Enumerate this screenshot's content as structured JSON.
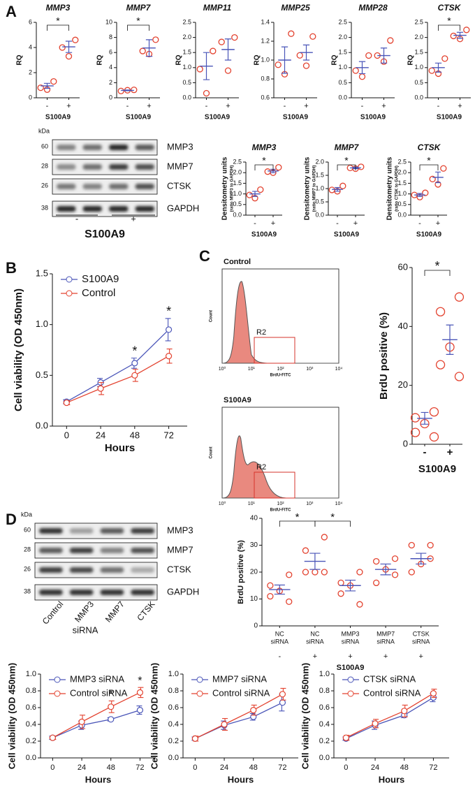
{
  "panels": [
    "A",
    "B",
    "C",
    "D"
  ],
  "blots": [
    {
      "unit": "kDa",
      "proteins": [
        "MMP3",
        "MMP7",
        "CTSK",
        "GAPDH"
      ],
      "kda": [
        "60",
        "28",
        "26",
        "38"
      ],
      "lanes": [
        "-",
        "+"
      ],
      "group_label": "S100A9"
    },
    {
      "unit": "kDa",
      "proteins": [
        "MMP3",
        "MMP7",
        "CTSK",
        "GAPDH"
      ],
      "kda": [
        "60",
        "28",
        "26",
        "38"
      ],
      "lanes": [
        "Control",
        "MMP3",
        "MMP7",
        "CTSK"
      ],
      "group_label": "siRNA"
    }
  ],
  "flow": [
    {
      "title": "Control",
      "gate": "R2",
      "ylabel": "Count",
      "xlabel": "BrdU-FITC",
      "xticks": [
        "10⁰",
        "10¹",
        "10²",
        "10³",
        "10⁴"
      ]
    },
    {
      "title": "S100A9",
      "gate": "R2",
      "ylabel": "Count",
      "xlabel": "BrdU-FITC",
      "xticks": [
        "10⁰",
        "10¹",
        "10²",
        "10³",
        "10⁴"
      ]
    }
  ],
  "chart_data": [
    {
      "type": "dot",
      "title": "MMP3",
      "ylabel": "RQ",
      "xlabel": "S100A9",
      "categories": [
        "-",
        "+"
      ],
      "points": [
        [
          1.3,
          0.8,
          0.65
        ],
        [
          4.6,
          4.0,
          3.3
        ]
      ],
      "mean": [
        0.95,
        4.05
      ],
      "sem": [
        0.2,
        0.45
      ],
      "ylim": [
        0,
        6
      ],
      "yticks": [
        0,
        2,
        4,
        6
      ],
      "brackets": [
        {
          "label": "*",
          "between": [
            0,
            1
          ]
        }
      ],
      "point_color": "#e3422f",
      "mean_color": "#4a55b8"
    },
    {
      "type": "dot",
      "title": "MMP7",
      "ylabel": "RQ",
      "xlabel": "S100A9",
      "categories": [
        "-",
        "+"
      ],
      "points": [
        [
          1.05,
          0.9,
          1.0
        ],
        [
          7.7,
          6.2,
          5.8
        ]
      ],
      "mean": [
        0.98,
        6.6
      ],
      "sem": [
        0.05,
        1.1
      ],
      "ylim": [
        0,
        10
      ],
      "yticks": [
        0,
        2,
        4,
        6,
        8,
        10
      ],
      "brackets": [
        {
          "label": "*",
          "between": [
            0,
            1
          ]
        }
      ],
      "point_color": "#e3422f",
      "mean_color": "#4a55b8"
    },
    {
      "type": "dot",
      "title": "MMP11",
      "ylabel": "RQ",
      "xlabel": "S100A9",
      "categories": [
        "-",
        "+"
      ],
      "points": [
        [
          1.55,
          0.95,
          0.15
        ],
        [
          2.0,
          1.85,
          0.9
        ]
      ],
      "mean": [
        1.05,
        1.6
      ],
      "sem": [
        0.45,
        0.35
      ],
      "ylim": [
        0,
        2.5
      ],
      "yticks": [
        {
          "value": 0,
          "label": "0.0"
        },
        0.5,
        {
          "value": 1,
          "label": "1.0"
        },
        1.5,
        {
          "value": 2,
          "label": "2.0"
        },
        2.5
      ],
      "brackets": [],
      "point_color": "#e3422f",
      "mean_color": "#4a55b8"
    },
    {
      "type": "dot",
      "title": "MMP25",
      "ylabel": "RQ",
      "xlabel": "S100A9",
      "categories": [
        "-",
        "+"
      ],
      "points": [
        [
          1.28,
          0.95,
          0.85
        ],
        [
          1.25,
          1.05,
          0.94
        ]
      ],
      "mean": [
        1.0,
        1.08
      ],
      "sem": [
        0.14,
        0.08
      ],
      "ylim": [
        0.6,
        1.4
      ],
      "yticks": [
        0.6,
        0.8,
        {
          "value": 1,
          "label": "1.0"
        },
        1.2,
        1.4
      ],
      "brackets": [],
      "point_color": "#e3422f",
      "mean_color": "#4a55b8"
    },
    {
      "type": "dot",
      "title": "MMP28",
      "ylabel": "RQ",
      "xlabel": "S100A9",
      "categories": [
        "-",
        "+"
      ],
      "points": [
        [
          1.4,
          0.9,
          0.7
        ],
        [
          1.9,
          1.4,
          1.2
        ]
      ],
      "mean": [
        1.0,
        1.4
      ],
      "sem": [
        0.2,
        0.25
      ],
      "ylim": [
        0,
        2.5
      ],
      "yticks": [
        {
          "value": 0,
          "label": "0.0"
        },
        0.5,
        {
          "value": 1,
          "label": "1.0"
        },
        1.5,
        {
          "value": 2,
          "label": "2.0"
        },
        2.5
      ],
      "brackets": [],
      "point_color": "#e3422f",
      "mean_color": "#4a55b8"
    },
    {
      "type": "dot",
      "title": "CTSK",
      "ylabel": "RQ",
      "xlabel": "S100A9",
      "categories": [
        "-",
        "+"
      ],
      "points": [
        [
          1.3,
          0.9,
          0.8
        ],
        [
          2.25,
          2.05,
          1.95
        ]
      ],
      "mean": [
        1.0,
        2.07
      ],
      "sem": [
        0.15,
        0.1
      ],
      "ylim": [
        0,
        2.5
      ],
      "yticks": [
        {
          "value": 0,
          "label": "0.0"
        },
        0.5,
        {
          "value": 1,
          "label": "1.0"
        },
        1.5,
        {
          "value": 2,
          "label": "2.0"
        },
        2.5
      ],
      "brackets": [
        {
          "label": "*",
          "between": [
            0,
            1
          ]
        }
      ],
      "point_color": "#e3422f",
      "mean_color": "#4a55b8"
    },
    {
      "type": "dot",
      "title": "MMP3",
      "ylabel": "Densitometry units",
      "ylabel_note": "(ratio MMP3 to GAPDH)",
      "xlabel": "S100A9",
      "categories": [
        "-",
        "+"
      ],
      "points": [
        [
          1.2,
          0.95,
          0.8
        ],
        [
          2.25,
          2.05,
          2.0
        ]
      ],
      "mean": [
        1.0,
        2.08
      ],
      "sem": [
        0.12,
        0.08
      ],
      "ylim": [
        0,
        2.5
      ],
      "yticks": [
        {
          "value": 0,
          "label": "0.0"
        },
        0.5,
        {
          "value": 1,
          "label": "1.0"
        },
        1.5,
        {
          "value": 2,
          "label": "2.0"
        },
        2.5
      ],
      "brackets": [
        {
          "label": "*",
          "between": [
            0,
            1
          ]
        }
      ],
      "point_color": "#e3422f",
      "mean_color": "#4a55b8"
    },
    {
      "type": "dot",
      "title": "MMP7",
      "ylabel": "Densitometry units",
      "ylabel_note": "(ratio MMP7 to GAPDH)",
      "xlabel": "S100A9",
      "categories": [
        "-",
        "+"
      ],
      "points": [
        [
          1.1,
          0.95,
          0.9
        ],
        [
          1.82,
          1.78,
          1.75
        ]
      ],
      "mean": [
        0.97,
        1.78
      ],
      "sem": [
        0.07,
        0.03
      ],
      "ylim": [
        0,
        2
      ],
      "yticks": [
        {
          "value": 0,
          "label": "0.0"
        },
        0.5,
        {
          "value": 1,
          "label": "1.0"
        },
        1.5,
        {
          "value": 2,
          "label": "2.0"
        }
      ],
      "brackets": [
        {
          "label": "*",
          "between": [
            0,
            1
          ]
        }
      ],
      "point_color": "#e3422f",
      "mean_color": "#4a55b8"
    },
    {
      "type": "dot",
      "title": "CTSK",
      "ylabel": "Densitometry units",
      "ylabel_note": "(ratio CTSK to GAPDH)",
      "xlabel": "S100A9",
      "categories": [
        "-",
        "+"
      ],
      "points": [
        [
          1.05,
          0.95,
          0.85
        ],
        [
          2.2,
          1.7,
          1.45
        ]
      ],
      "mean": [
        0.95,
        1.78
      ],
      "sem": [
        0.07,
        0.25
      ],
      "ylim": [
        0,
        2.5
      ],
      "yticks": [
        {
          "value": 0,
          "label": "0.0"
        },
        0.5,
        {
          "value": 1,
          "label": "1.0"
        },
        1.5,
        {
          "value": 2,
          "label": "2.0"
        },
        2.5
      ],
      "brackets": [
        {
          "label": "*",
          "between": [
            0,
            1
          ]
        }
      ],
      "point_color": "#e3422f",
      "mean_color": "#4a55b8"
    },
    {
      "type": "line",
      "xlabel": "Hours",
      "ylabel": "Cell viability (OD 450nm)",
      "x": [
        0,
        24,
        48,
        72
      ],
      "xlim": [
        -10,
        85
      ],
      "xticks": [
        0,
        24,
        48,
        72
      ],
      "ylim": [
        0,
        1.5
      ],
      "yticks": [
        {
          "value": 0,
          "label": "0.0"
        },
        0.5,
        {
          "value": 1,
          "label": "1.0"
        },
        1.5
      ],
      "legend": "upper left",
      "series": [
        {
          "name": "S100A9",
          "color": "#4a55b8",
          "values": [
            0.24,
            0.43,
            0.62,
            0.95
          ],
          "errors": [
            0.02,
            0.04,
            0.05,
            0.11
          ]
        },
        {
          "name": "Control",
          "color": "#e3422f",
          "values": [
            0.23,
            0.37,
            0.5,
            0.69
          ],
          "errors": [
            0.02,
            0.06,
            0.06,
            0.07
          ]
        }
      ],
      "annotations": [
        {
          "text": "*",
          "x": 48
        },
        {
          "text": "*",
          "x": 72
        }
      ]
    },
    {
      "type": "dot",
      "ylabel": "BrdU positive (%)",
      "xlabel": "S100A9",
      "categories": [
        "-",
        "+"
      ],
      "points": [
        [
          11,
          9,
          7,
          4,
          2.5
        ],
        [
          50,
          45,
          33,
          27,
          23
        ]
      ],
      "mean": [
        8.8,
        35.5
      ],
      "sem": [
        2,
        5
      ],
      "ylim": [
        0,
        60
      ],
      "yticks": [
        0,
        20,
        40,
        60
      ],
      "brackets": [
        {
          "label": "*",
          "between": [
            0,
            1
          ]
        }
      ],
      "point_color": "#e3422f",
      "mean_color": "#4a55b8"
    },
    {
      "type": "dot",
      "ylabel": "BrdU positive (%)",
      "xlabel": "S100A9",
      "categories": [
        [
          "NC",
          "siRNA"
        ],
        [
          "NC",
          "siRNA"
        ],
        [
          "MMP3",
          "siRNA"
        ],
        [
          "MMP7",
          "siRNA"
        ],
        [
          "CTSK",
          "siRNA"
        ]
      ],
      "groups": [
        "-",
        "+",
        "+",
        "+",
        "+"
      ],
      "points": [
        [
          19,
          15,
          13,
          11,
          9
        ],
        [
          33,
          28,
          20,
          20,
          20
        ],
        [
          20,
          16,
          15,
          12,
          8
        ],
        [
          25,
          24,
          21,
          16,
          19
        ],
        [
          30,
          30,
          23,
          20,
          25
        ]
      ],
      "mean": [
        13.5,
        24,
        15,
        21,
        25
      ],
      "sem": [
        1.7,
        3,
        2,
        2,
        2
      ],
      "ylim": [
        0,
        40
      ],
      "yticks": [
        0,
        10,
        20,
        30,
        40
      ],
      "brackets": [
        {
          "label": "*",
          "between": [
            0,
            1
          ]
        },
        {
          "label": "*",
          "between": [
            1,
            2
          ]
        }
      ],
      "point_color": "#e3422f",
      "mean_color": "#4a55b8"
    },
    {
      "type": "line",
      "xlabel": "Hours",
      "ylabel": "Cell viability (OD 450nm)",
      "x": [
        0,
        24,
        48,
        72
      ],
      "xlim": [
        -10,
        85
      ],
      "xticks": [
        0,
        24,
        48,
        72
      ],
      "ylim": [
        0,
        1
      ],
      "yticks": [
        {
          "value": 0,
          "label": "0.0"
        },
        0.2,
        0.4,
        0.6,
        0.8,
        {
          "value": 1,
          "label": "1.0"
        }
      ],
      "legend": "upper left",
      "series": [
        {
          "name": "MMP3 siRNA",
          "color": "#4a55b8",
          "values": [
            0.24,
            0.39,
            0.46,
            0.57
          ],
          "errors": [
            0.02,
            0.05,
            0.02,
            0.05
          ]
        },
        {
          "name": "Control siRNA",
          "color": "#e3422f",
          "values": [
            0.24,
            0.43,
            0.61,
            0.78
          ],
          "errors": [
            0.02,
            0.08,
            0.07,
            0.06
          ]
        }
      ],
      "annotations": [
        {
          "text": "*",
          "x": 48
        },
        {
          "text": "*",
          "x": 72
        }
      ]
    },
    {
      "type": "line",
      "xlabel": "Hours",
      "ylabel": "Cell viability (OD 450nm)",
      "x": [
        0,
        24,
        48,
        72
      ],
      "xlim": [
        -10,
        85
      ],
      "xticks": [
        0,
        24,
        48,
        72
      ],
      "ylim": [
        0,
        1
      ],
      "yticks": [
        {
          "value": 0,
          "label": "0.0"
        },
        0.2,
        0.4,
        0.6,
        0.8,
        {
          "value": 1,
          "label": "1.0"
        }
      ],
      "legend": "upper left",
      "series": [
        {
          "name": "MMP7 siRNA",
          "color": "#4a55b8",
          "values": [
            0.23,
            0.39,
            0.49,
            0.66
          ],
          "errors": [
            0.02,
            0.05,
            0.04,
            0.1
          ]
        },
        {
          "name": "Control siRNA",
          "color": "#e3422f",
          "values": [
            0.23,
            0.4,
            0.57,
            0.76
          ],
          "errors": [
            0.03,
            0.07,
            0.06,
            0.07
          ]
        }
      ],
      "annotations": []
    },
    {
      "type": "line",
      "xlabel": "Hours",
      "ylabel": "Cell viability (OD 450nm)",
      "x": [
        0,
        24,
        48,
        72
      ],
      "xlim": [
        -10,
        85
      ],
      "xticks": [
        0,
        24,
        48,
        72
      ],
      "ylim": [
        0,
        1
      ],
      "yticks": [
        {
          "value": 0,
          "label": "0.0"
        },
        0.2,
        0.4,
        0.6,
        0.8,
        {
          "value": 1,
          "label": "1.0"
        }
      ],
      "legend": "upper left",
      "series": [
        {
          "name": "CTSK siRNA",
          "color": "#4a55b8",
          "values": [
            0.23,
            0.39,
            0.51,
            0.72
          ],
          "errors": [
            0.02,
            0.05,
            0.03,
            0.05
          ]
        },
        {
          "name": "Control siRNA",
          "color": "#e3422f",
          "values": [
            0.24,
            0.41,
            0.56,
            0.77
          ],
          "errors": [
            0.03,
            0.05,
            0.07,
            0.05
          ]
        }
      ],
      "annotations": []
    }
  ]
}
